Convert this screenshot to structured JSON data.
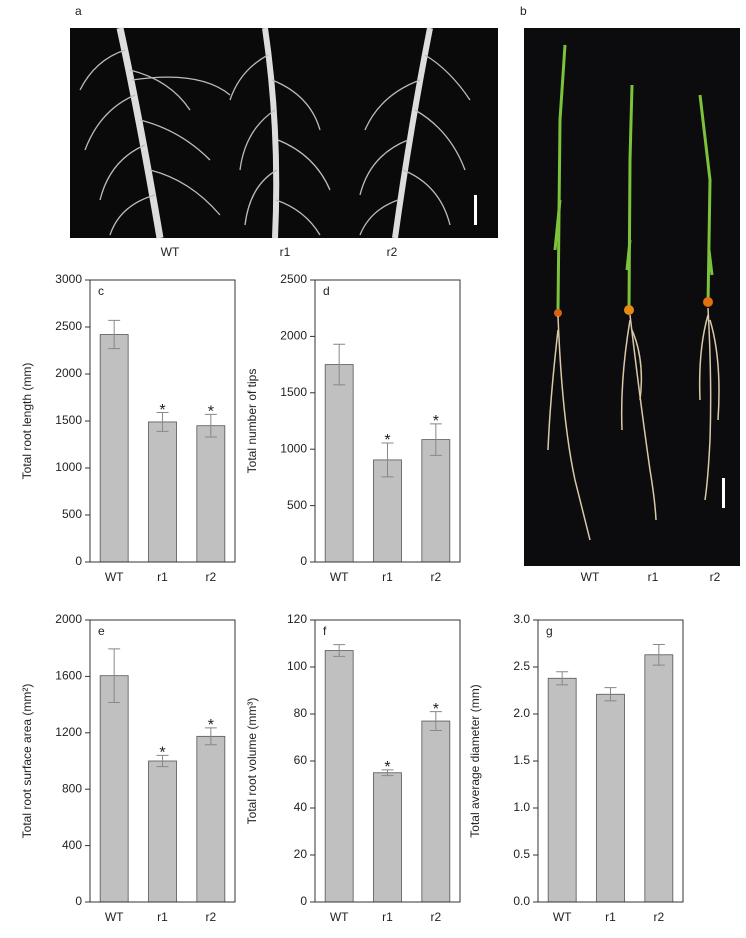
{
  "panels": {
    "a": {
      "label": "a",
      "captions": [
        "WT",
        "r1",
        "r2"
      ]
    },
    "b": {
      "label": "b",
      "captions": [
        "WT",
        "r1",
        "r2"
      ]
    }
  },
  "chart_data": [
    {
      "type": "bar",
      "panel": "c",
      "ylabel": "Total root length (mm)",
      "categories": [
        "WT",
        "r1",
        "r2"
      ],
      "values": [
        2420,
        1490,
        1450
      ],
      "errors": [
        150,
        100,
        120
      ],
      "significance": [
        null,
        "*",
        "*"
      ],
      "color": "#c0c0c0",
      "ylim": [
        0,
        3000
      ],
      "yticks": [
        0,
        500,
        1000,
        1500,
        2000,
        2500,
        3000
      ]
    },
    {
      "type": "bar",
      "panel": "d",
      "ylabel": "Total number of tips",
      "categories": [
        "WT",
        "r1",
        "r2"
      ],
      "values": [
        1750,
        905,
        1085
      ],
      "errors": [
        180,
        150,
        140
      ],
      "significance": [
        null,
        "*",
        "*"
      ],
      "color": "#c0c0c0",
      "ylim": [
        0,
        2500
      ],
      "yticks": [
        0,
        500,
        1000,
        1500,
        2000,
        2500
      ]
    },
    {
      "type": "bar",
      "panel": "e",
      "ylabel": "Total root surface area (mm²)",
      "categories": [
        "WT",
        "r1",
        "r2"
      ],
      "values": [
        1605,
        1000,
        1175
      ],
      "errors": [
        190,
        40,
        60
      ],
      "significance": [
        null,
        "*",
        "*"
      ],
      "color": "#c0c0c0",
      "ylim": [
        0,
        2000
      ],
      "yticks": [
        0,
        400,
        800,
        1200,
        1600,
        2000
      ]
    },
    {
      "type": "bar",
      "panel": "f",
      "ylabel": "Total root volume (mm³)",
      "categories": [
        "WT",
        "r1",
        "r2"
      ],
      "values": [
        107,
        55,
        77
      ],
      "errors": [
        2.5,
        1.2,
        4
      ],
      "significance": [
        null,
        "*",
        "*"
      ],
      "color": "#c0c0c0",
      "ylim": [
        0,
        120
      ],
      "yticks": [
        0,
        20,
        40,
        60,
        80,
        100,
        120
      ]
    },
    {
      "type": "bar",
      "panel": "g",
      "ylabel": "Total average diameter (mm)",
      "categories": [
        "WT",
        "r1",
        "r2"
      ],
      "values": [
        2.38,
        2.21,
        2.63
      ],
      "errors": [
        0.07,
        0.07,
        0.11
      ],
      "color": "#c0c0c0",
      "ylim": [
        0,
        3
      ],
      "yticks": [
        {
          "value": 0,
          "label": "0.0"
        },
        0.5,
        {
          "value": 1,
          "label": "1.0"
        },
        1.5,
        {
          "value": 2,
          "label": "2.0"
        },
        2.5,
        {
          "value": 3,
          "label": "3.0"
        }
      ]
    }
  ]
}
